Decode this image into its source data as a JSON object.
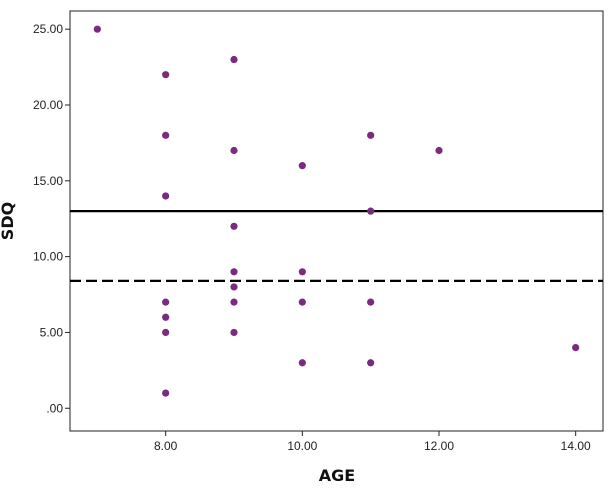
{
  "chart_data": {
    "type": "scatter",
    "xlabel": "AGE",
    "ylabel": "SDQ",
    "xlim": [
      6.6,
      14.4
    ],
    "ylim": [
      -1.5,
      26.2
    ],
    "x_ticks": [
      8,
      10,
      12,
      14
    ],
    "x_tick_labels": [
      "8.00",
      "10.00",
      "12.00",
      "14.00"
    ],
    "y_ticks": [
      0,
      5,
      10,
      15,
      20,
      25
    ],
    "y_tick_labels": [
      ".00",
      "5.00",
      "10.00",
      "15.00",
      "20.00",
      "25.00"
    ],
    "grid": false,
    "marker_color": "#7a2a7f",
    "reference_lines": [
      {
        "axis": "y",
        "value": 13,
        "style": "solid"
      },
      {
        "axis": "y",
        "value": 8.4,
        "style": "dashed"
      }
    ],
    "points": [
      {
        "x": 7,
        "y": 25
      },
      {
        "x": 8,
        "y": 22
      },
      {
        "x": 8,
        "y": 18
      },
      {
        "x": 8,
        "y": 14
      },
      {
        "x": 8,
        "y": 7
      },
      {
        "x": 8,
        "y": 6
      },
      {
        "x": 8,
        "y": 5
      },
      {
        "x": 8,
        "y": 1
      },
      {
        "x": 9,
        "y": 23
      },
      {
        "x": 9,
        "y": 17
      },
      {
        "x": 9,
        "y": 12
      },
      {
        "x": 9,
        "y": 9
      },
      {
        "x": 9,
        "y": 8
      },
      {
        "x": 9,
        "y": 7
      },
      {
        "x": 9,
        "y": 5
      },
      {
        "x": 10,
        "y": 16
      },
      {
        "x": 10,
        "y": 9
      },
      {
        "x": 10,
        "y": 7
      },
      {
        "x": 10,
        "y": 3
      },
      {
        "x": 11,
        "y": 18
      },
      {
        "x": 11,
        "y": 13
      },
      {
        "x": 11,
        "y": 7
      },
      {
        "x": 11,
        "y": 3
      },
      {
        "x": 12,
        "y": 17
      },
      {
        "x": 14,
        "y": 4
      }
    ]
  }
}
